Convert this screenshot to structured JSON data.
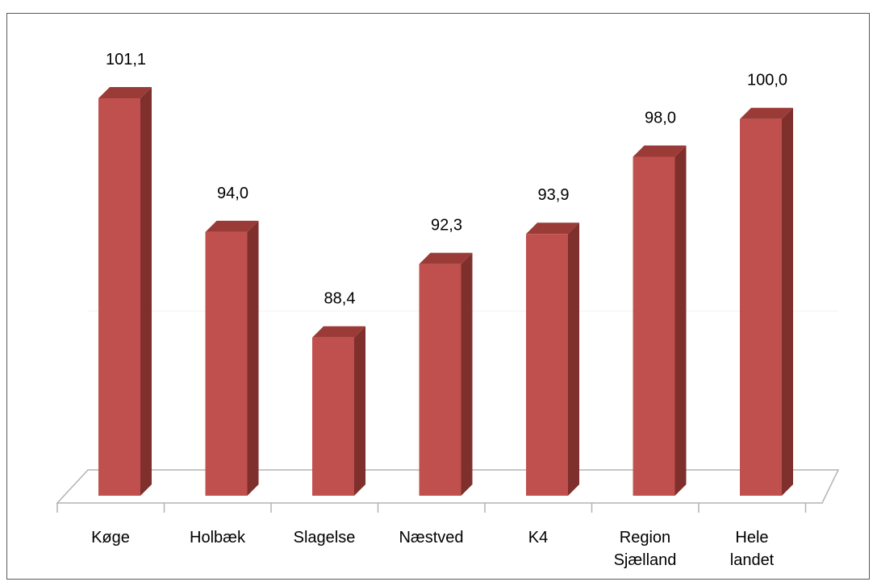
{
  "chart_data": {
    "type": "bar",
    "style": "3d-column",
    "categories": [
      "Køge",
      "Holbæk",
      "Slagelse",
      "Næstved",
      "K4",
      "Region Sjælland",
      "Hele landet"
    ],
    "category_lines": [
      [
        "Køge"
      ],
      [
        "Holbæk"
      ],
      [
        "Slagelse"
      ],
      [
        "Næstved"
      ],
      [
        "K4"
      ],
      [
        "Region",
        "Sjælland"
      ],
      [
        "Hele",
        "landet"
      ]
    ],
    "values": [
      101.1,
      94.0,
      88.4,
      92.3,
      93.9,
      98.0,
      100.0
    ],
    "value_labels": [
      "101,1",
      "94,0",
      "88,4",
      "92,3",
      "93,9",
      "98,0",
      "100,0"
    ],
    "ylim": [
      80,
      102
    ],
    "grid": false,
    "legend": "none",
    "colors": {
      "bar_front": "#c0504d",
      "bar_side": "#7f2f2c",
      "bar_top": "#9b3b38",
      "floor_line": "#b3b3b3"
    }
  }
}
